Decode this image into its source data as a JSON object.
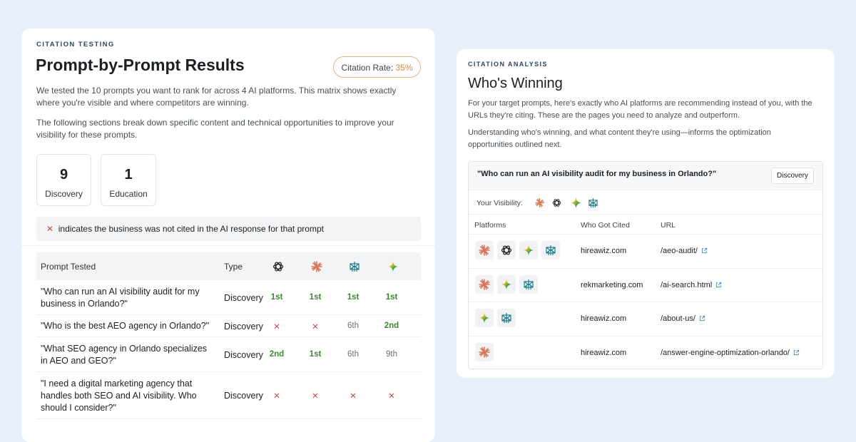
{
  "left": {
    "label": "CITATION TESTING",
    "title": "Prompt-by-Prompt Results",
    "citation_rate": {
      "label": "Citation Rate:",
      "value": "35%"
    },
    "paragraphs": [
      "We tested the 10 prompts you want to rank for across 4 AI platforms. This matrix shows exactly where you're visible and where competitors are winning.",
      "The following sections break down specific content and technical opportunities to improve your visibility for these prompts."
    ],
    "stats": [
      {
        "value": 9,
        "label": "Discovery"
      },
      {
        "value": 1,
        "label": "Education"
      }
    ],
    "note": {
      "icon": "✕",
      "text": "indicates the business was not cited in the AI response for that prompt"
    },
    "table": {
      "headers": [
        "Prompt Tested",
        "Type"
      ],
      "rows": [
        [
          "\"Who can run an AI visibility audit for my business in Orlando?\"",
          "Discovery",
          "1st",
          "1st",
          "1st",
          "1st"
        ],
        [
          "\"Who is the best AEO agency in Orlando?\"",
          "Discovery",
          "✕",
          "✕",
          "6th",
          "2nd"
        ],
        [
          "\"What SEO agency in Orlando specializes in AEO and GEO?\"",
          "Discovery",
          "2nd",
          "1st",
          "6th",
          "9th"
        ],
        [
          "\"I need a digital marketing agency that handles both SEO and AI visibility. Who should I consider?\"",
          "Discovery",
          "✕",
          "✕",
          "✕",
          "✕"
        ]
      ]
    }
  },
  "right": {
    "label": "CITATION ANALYSIS",
    "title": "Who's Winning",
    "paragraphs": [
      "For your target prompts, here's exactly who AI platforms are recommending instead of you, with the URLs they're citing. These are the pages you need to analyze and outperform.",
      "Understanding who's winning, and what content they're using—informs the optimization opportunities outlined next."
    ],
    "query": {
      "text": "\"Who can run an AI visibility audit for my business in Orlando?\"",
      "type": "Discovery"
    },
    "visibility_label": "Your Visibility:",
    "table": {
      "headers": [
        "Platforms",
        "Who Got Cited",
        "URL"
      ],
      "rows": [
        {
          "domain": "hireawiz.com",
          "url": "/aeo-audit/"
        },
        {
          "domain": "rekmarketing.com",
          "url": "/ai-search.html"
        },
        {
          "domain": "hireawiz.com",
          "url": "/about-us/"
        },
        {
          "domain": "hireawiz.com",
          "url": "/answer-engine-optimization-orlando/"
        }
      ]
    }
  }
}
